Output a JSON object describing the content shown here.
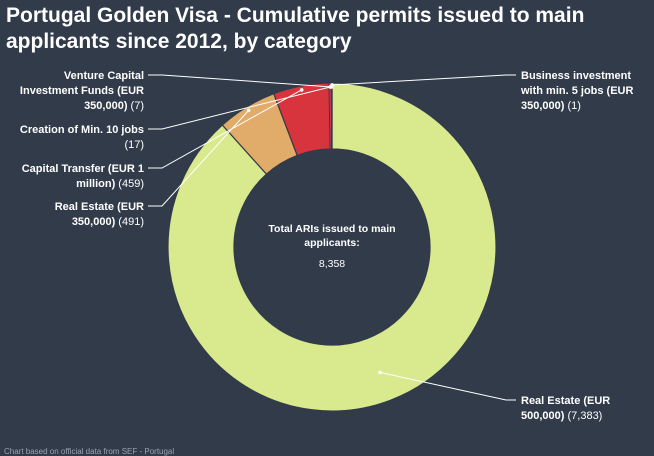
{
  "title": "Portugal Golden Visa - Cumulative permits issued to main applicants since 2012, by category",
  "center": {
    "label_line1": "Total ARIs issued to main",
    "label_line2": "applicants:",
    "value": "8,358"
  },
  "chart_data": {
    "type": "pie",
    "title": "Portugal Golden Visa - Cumulative permits issued to main applicants since 2012, by category",
    "total": 8358,
    "series": [
      {
        "name": "Business investment with min. 5 jobs (EUR 350,000)",
        "value": 1,
        "value_label": "(1)",
        "label_lines": [
          [
            "Business investment",
            ""
          ],
          [
            "with min. 5 jobs (EUR",
            ""
          ],
          [
            "350,000)",
            " (1)"
          ]
        ],
        "color": "#d91f2f"
      },
      {
        "name": "Real Estate (EUR 500,000)",
        "value": 7383,
        "value_label": "(7,383)",
        "label_lines": [
          [
            "Real Estate (EUR",
            ""
          ],
          [
            "500,000)",
            " (7,383)"
          ]
        ],
        "color": "#d9e98d"
      },
      {
        "name": "Real Estate (EUR 350,000)",
        "value": 491,
        "value_label": "(491)",
        "label_lines": [
          [
            "Real Estate (EUR",
            ""
          ],
          [
            "350,000)",
            " (491)"
          ]
        ],
        "color": "#e1ac6a"
      },
      {
        "name": "Capital Transfer (EUR 1 million)",
        "value": 459,
        "value_label": "(459)",
        "label_lines": [
          [
            "Capital Transfer (EUR 1",
            ""
          ],
          [
            "million)",
            " (459)"
          ]
        ],
        "color": "#d8343d"
      },
      {
        "name": "Creation of Min. 10 jobs",
        "value": 17,
        "value_label": "(17)",
        "label_lines": [
          [
            "Creation of Min. 10 jobs",
            ""
          ],
          [
            "",
            "(17)"
          ]
        ],
        "color": "#c13a55"
      },
      {
        "name": "Venture Capital Investment Funds (EUR 350,000)",
        "value": 7,
        "value_label": "(7)",
        "label_lines": [
          [
            "Venture Capital",
            ""
          ],
          [
            "Investment Funds (EUR",
            ""
          ],
          [
            "350,000)",
            " (7)"
          ]
        ],
        "color": "#b5302f"
      }
    ]
  },
  "footer": "Chart based on official data from SEF - Portugal"
}
